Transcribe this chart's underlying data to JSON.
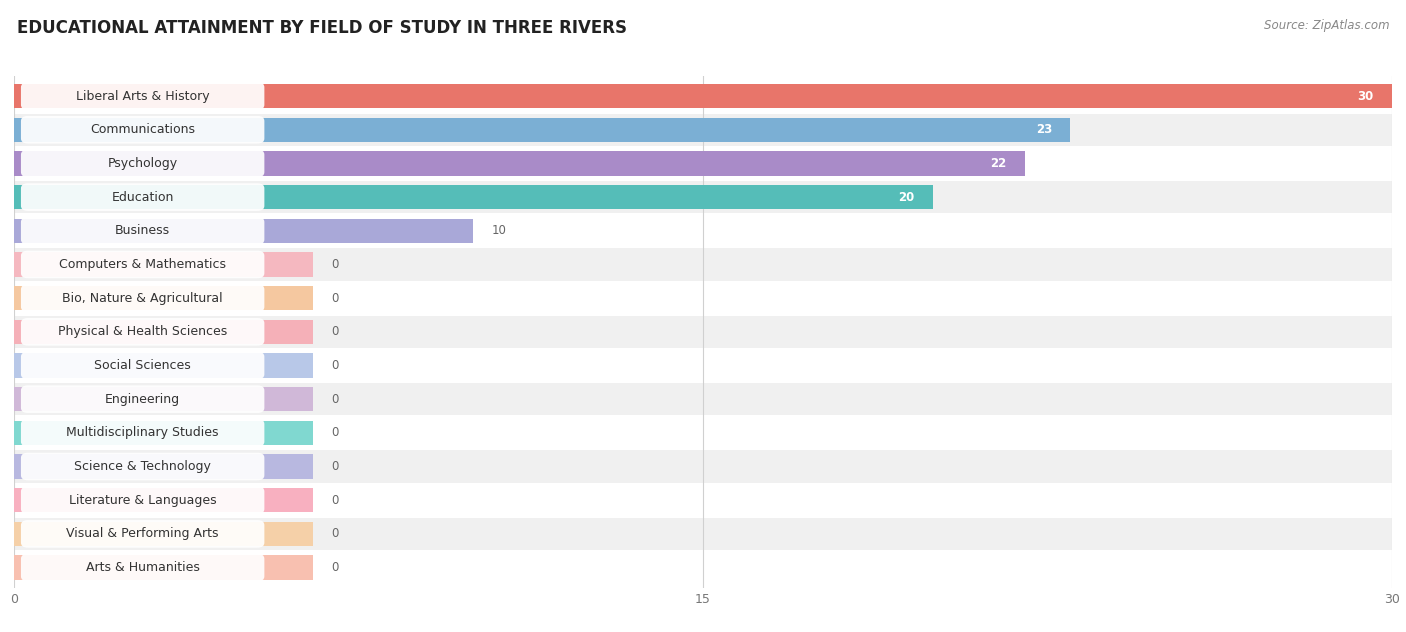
{
  "title": "EDUCATIONAL ATTAINMENT BY FIELD OF STUDY IN THREE RIVERS",
  "source": "Source: ZipAtlas.com",
  "categories": [
    "Liberal Arts & History",
    "Communications",
    "Psychology",
    "Education",
    "Business",
    "Computers & Mathematics",
    "Bio, Nature & Agricultural",
    "Physical & Health Sciences",
    "Social Sciences",
    "Engineering",
    "Multidisciplinary Studies",
    "Science & Technology",
    "Literature & Languages",
    "Visual & Performing Arts",
    "Arts & Humanities"
  ],
  "values": [
    30,
    23,
    22,
    20,
    10,
    0,
    0,
    0,
    0,
    0,
    0,
    0,
    0,
    0,
    0
  ],
  "bar_colors": [
    "#E8756A",
    "#7BAFD4",
    "#A98BC8",
    "#55BDB8",
    "#A9A8D8",
    "#F08090",
    "#F5B87A",
    "#F08888",
    "#90B8E0",
    "#D4A0C8",
    "#60C8C0",
    "#9898D0",
    "#F890A8",
    "#F5C890",
    "#F0A898"
  ],
  "zero_bar_colors": [
    "#F5B8C0",
    "#F5C8A0",
    "#F5B0B8",
    "#B8C8E8",
    "#D0B8D8",
    "#80D8D0",
    "#B8B8E0",
    "#F8B0C0",
    "#F5D0A8",
    "#F8C0B0"
  ],
  "xlim": [
    0,
    30
  ],
  "xticks": [
    0,
    15,
    30
  ],
  "background_color": "#ffffff",
  "row_bg_alt": "#f0f0f0",
  "title_fontsize": 12,
  "label_fontsize": 9,
  "value_fontsize": 8.5,
  "source_fontsize": 8.5
}
